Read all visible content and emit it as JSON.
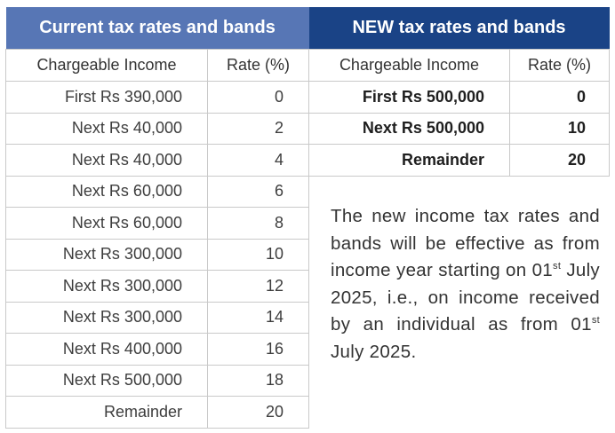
{
  "current": {
    "title": "Current tax rates and bands",
    "col_income": "Chargeable Income",
    "col_rate": "Rate (%)",
    "rows": [
      {
        "income": "First Rs 390,000",
        "rate": "0"
      },
      {
        "income": "Next Rs 40,000",
        "rate": "2"
      },
      {
        "income": "Next Rs 40,000",
        "rate": "4"
      },
      {
        "income": "Next Rs 60,000",
        "rate": "6"
      },
      {
        "income": "Next Rs 60,000",
        "rate": "8"
      },
      {
        "income": "Next Rs 300,000",
        "rate": "10"
      },
      {
        "income": "Next Rs 300,000",
        "rate": "12"
      },
      {
        "income": "Next Rs 300,000",
        "rate": "14"
      },
      {
        "income": "Next Rs 400,000",
        "rate": "16"
      },
      {
        "income": "Next Rs 500,000",
        "rate": "18"
      },
      {
        "income": "Remainder",
        "rate": "20"
      }
    ]
  },
  "new": {
    "title": "NEW tax rates and bands",
    "col_income": "Chargeable Income",
    "col_rate": "Rate (%)",
    "rows": [
      {
        "income": "First Rs 500,000",
        "rate": "0"
      },
      {
        "income": "Next Rs 500,000",
        "rate": "10"
      },
      {
        "income": "Remainder",
        "rate": "20"
      }
    ]
  },
  "note": {
    "part1": "The new income tax rates and bands will be effective as from income year starting on 01",
    "sup1": "st",
    "part2": " July 2025, i.e., on income received by an individual as from 01",
    "sup2": "st",
    "part3": " July 2025."
  }
}
